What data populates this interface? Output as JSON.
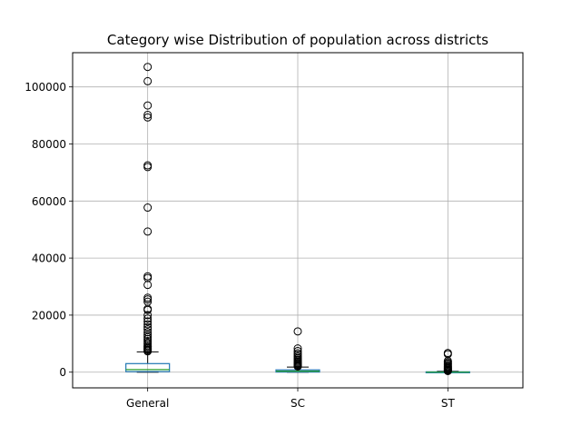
{
  "chart_data": {
    "type": "box",
    "title": "Category wise Distribution of population across districts",
    "xlabel": "",
    "ylabel": "",
    "ylim": [
      -5500,
      112000
    ],
    "yticks": [
      0,
      20000,
      40000,
      60000,
      80000,
      100000
    ],
    "ytick_labels": [
      "0",
      "20000",
      "40000",
      "60000",
      "80000",
      "100000"
    ],
    "grid": true,
    "colors": {
      "box": "#1f77b4",
      "median": "#2ca02c",
      "whisker": "#000000",
      "grid": "#b0b0b0"
    },
    "categories": [
      "General",
      "SC",
      "ST"
    ],
    "boxes": [
      {
        "name": "General",
        "whislo": 0,
        "q1": 200,
        "med": 900,
        "q3": 3000,
        "whishi": 7100,
        "fliers": [
          7300,
          7700,
          8000,
          8400,
          8800,
          9200,
          9800,
          10300,
          10900,
          11600,
          12300,
          13100,
          14000,
          15000,
          15800,
          16800,
          17800,
          18800,
          20000,
          21800,
          22200,
          24700,
          25500,
          26100,
          30600,
          33000,
          33600,
          49300,
          57700,
          71900,
          72500,
          89300,
          90200,
          93500,
          102000,
          107000
        ]
      },
      {
        "name": "SC",
        "whislo": 0,
        "q1": 50,
        "med": 350,
        "q3": 800,
        "whishi": 1800,
        "fliers": [
          2000,
          2300,
          2600,
          2900,
          3200,
          3600,
          4000,
          4400,
          4900,
          5400,
          6000,
          6600,
          7400,
          8300,
          14300
        ]
      },
      {
        "name": "ST",
        "whislo": 0,
        "q1": 0,
        "med": 20,
        "q3": 120,
        "whishi": 300,
        "fliers": [
          400,
          600,
          800,
          1000,
          1300,
          1600,
          1900,
          2200,
          2600,
          3000,
          3400,
          3900,
          6300,
          6700
        ]
      }
    ]
  }
}
